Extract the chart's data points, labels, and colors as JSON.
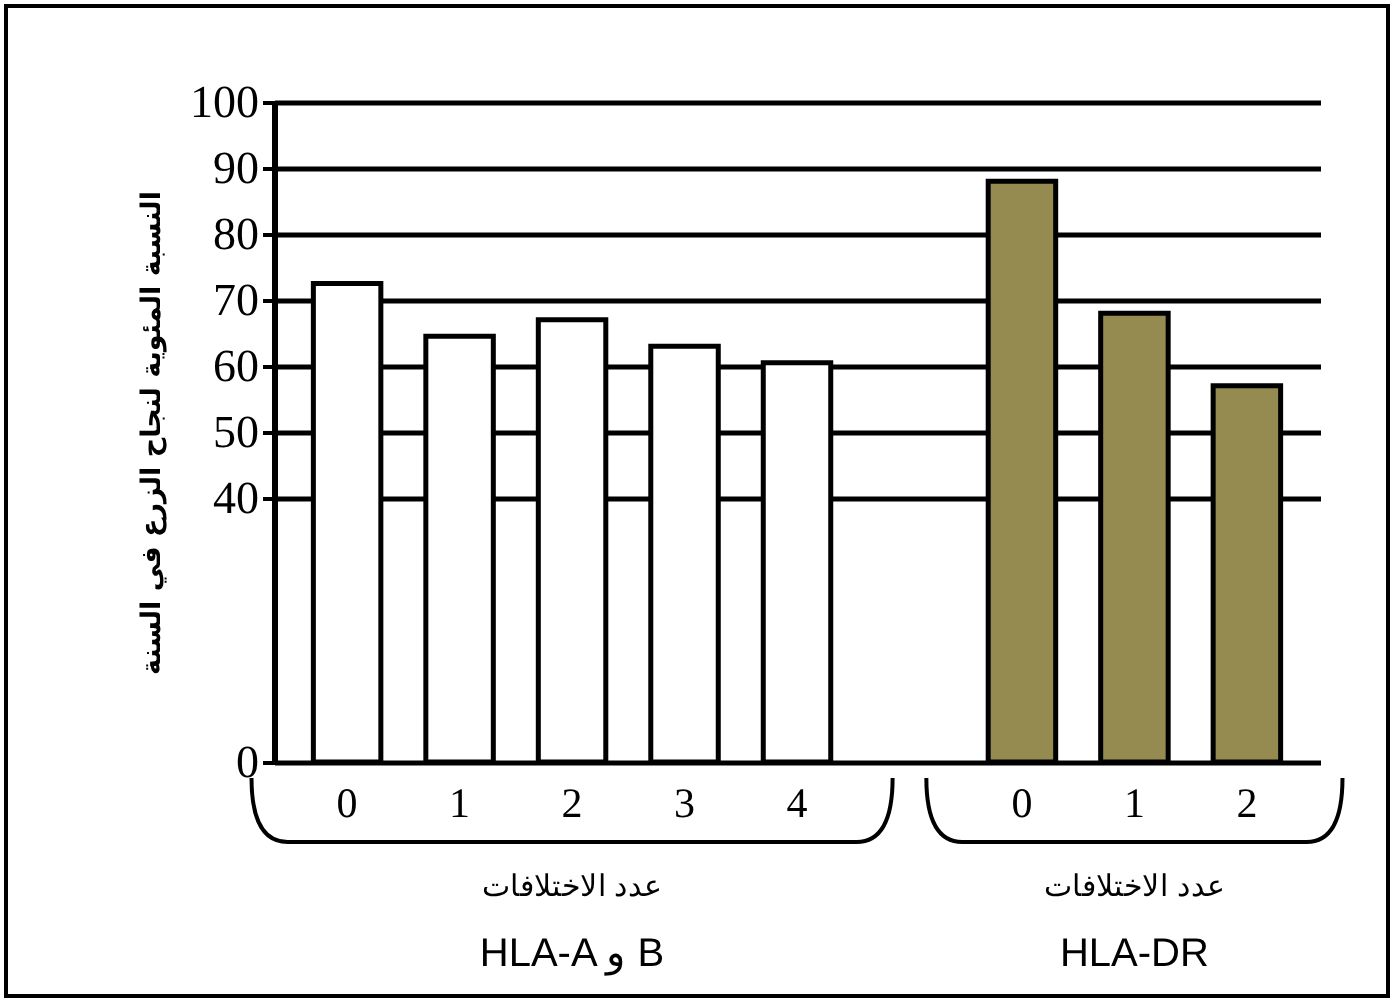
{
  "chart_data": {
    "type": "bar",
    "ylabel": "النسبة المئوية لنجاح الزرع في السنة",
    "categories": [
      "0",
      "1",
      "2",
      "3",
      "4",
      null,
      "0",
      "1",
      "2"
    ],
    "values": [
      72.5,
      64.5,
      67,
      63,
      60.5,
      null,
      88,
      68,
      57
    ],
    "colors": [
      "#ffffff",
      "#ffffff",
      "#ffffff",
      "#ffffff",
      "#ffffff",
      null,
      "#958a4f",
      "#958a4f",
      "#958a4f"
    ],
    "ylim": [
      0,
      100
    ],
    "yticks": [
      0,
      40,
      50,
      60,
      70,
      80,
      90,
      100
    ],
    "grid": "y",
    "annotations": [
      "عدد الاختلافات",
      "HLA-A و B",
      "عدد الاختلافات",
      "HLA-DR"
    ]
  }
}
